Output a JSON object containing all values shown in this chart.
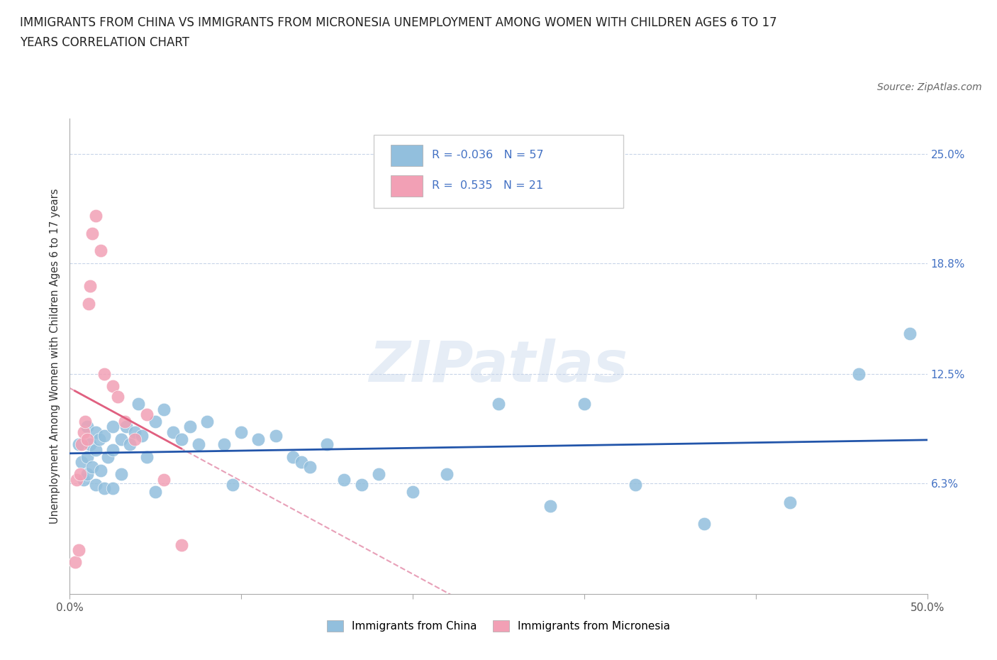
{
  "title_line1": "IMMIGRANTS FROM CHINA VS IMMIGRANTS FROM MICRONESIA UNEMPLOYMENT AMONG WOMEN WITH CHILDREN AGES 6 TO 17",
  "title_line2": "YEARS CORRELATION CHART",
  "source": "Source: ZipAtlas.com",
  "ylabel": "Unemployment Among Women with Children Ages 6 to 17 years",
  "xlim": [
    0.0,
    0.5
  ],
  "ylim": [
    0.0,
    0.27
  ],
  "ytick_labels_right": [
    "25.0%",
    "18.8%",
    "12.5%",
    "6.3%"
  ],
  "ytick_vals_right": [
    0.25,
    0.188,
    0.125,
    0.063
  ],
  "r_china": -0.036,
  "n_china": 57,
  "r_micronesia": 0.535,
  "n_micronesia": 21,
  "color_china": "#92bfdd",
  "color_micronesia": "#f2a0b5",
  "trendline_china_color": "#2255aa",
  "trendline_micronesia_color": "#e06080",
  "trendline_micronesia_dashed_color": "#e8a0b8",
  "watermark": "ZIPatlas",
  "background_color": "#ffffff",
  "grid_color": "#c8d4e8",
  "china_x": [
    0.005,
    0.007,
    0.008,
    0.01,
    0.01,
    0.01,
    0.012,
    0.013,
    0.015,
    0.015,
    0.015,
    0.017,
    0.018,
    0.02,
    0.02,
    0.022,
    0.025,
    0.025,
    0.025,
    0.03,
    0.03,
    0.033,
    0.035,
    0.038,
    0.04,
    0.042,
    0.045,
    0.05,
    0.05,
    0.055,
    0.06,
    0.065,
    0.07,
    0.075,
    0.08,
    0.09,
    0.095,
    0.1,
    0.11,
    0.12,
    0.13,
    0.135,
    0.14,
    0.15,
    0.16,
    0.17,
    0.18,
    0.2,
    0.22,
    0.25,
    0.28,
    0.3,
    0.33,
    0.37,
    0.42,
    0.46,
    0.49
  ],
  "china_y": [
    0.085,
    0.075,
    0.065,
    0.095,
    0.078,
    0.068,
    0.085,
    0.072,
    0.092,
    0.082,
    0.062,
    0.088,
    0.07,
    0.09,
    0.06,
    0.078,
    0.095,
    0.082,
    0.06,
    0.088,
    0.068,
    0.095,
    0.085,
    0.092,
    0.108,
    0.09,
    0.078,
    0.098,
    0.058,
    0.105,
    0.092,
    0.088,
    0.095,
    0.085,
    0.098,
    0.085,
    0.062,
    0.092,
    0.088,
    0.09,
    0.078,
    0.075,
    0.072,
    0.085,
    0.065,
    0.062,
    0.068,
    0.058,
    0.068,
    0.108,
    0.05,
    0.108,
    0.062,
    0.04,
    0.052,
    0.125,
    0.148
  ],
  "micronesia_x": [
    0.003,
    0.004,
    0.005,
    0.006,
    0.007,
    0.008,
    0.009,
    0.01,
    0.011,
    0.012,
    0.013,
    0.015,
    0.018,
    0.02,
    0.025,
    0.028,
    0.032,
    0.038,
    0.045,
    0.055,
    0.065
  ],
  "micronesia_y": [
    0.018,
    0.065,
    0.025,
    0.068,
    0.085,
    0.092,
    0.098,
    0.088,
    0.165,
    0.175,
    0.205,
    0.215,
    0.195,
    0.125,
    0.118,
    0.112,
    0.098,
    0.088,
    0.102,
    0.065,
    0.028
  ]
}
